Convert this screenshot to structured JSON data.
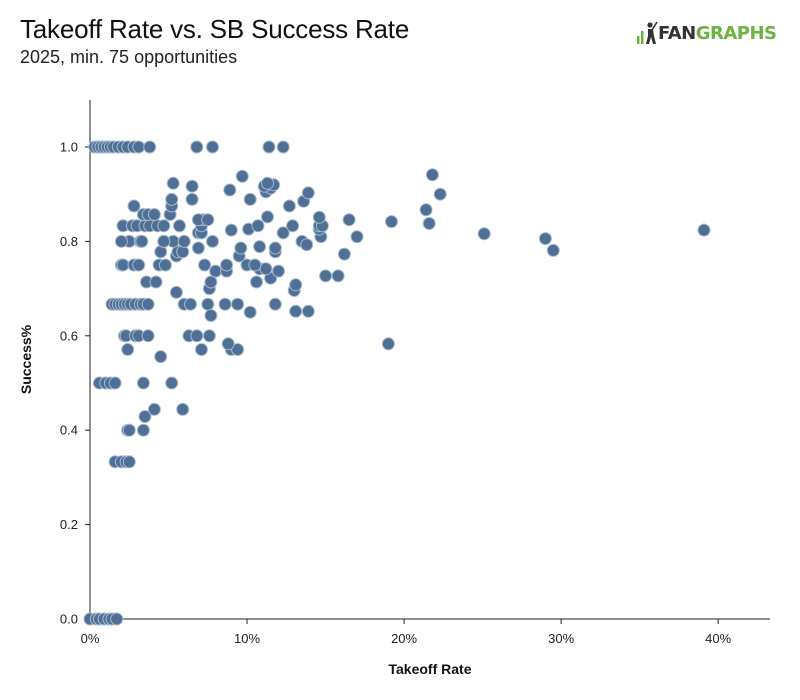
{
  "brand": {
    "logo_text_a": "FAN",
    "logo_text_b": "GRAPHS",
    "logo_icon": "fangraphs-batter-icon",
    "color_dark": "#333333",
    "color_green": "#6cb33f"
  },
  "chart_data": {
    "type": "scatter",
    "title": "Takeoff Rate vs. SB Success Rate",
    "subtitle": "2025, min. 75 opportunities",
    "xlabel": "Takeoff Rate",
    "ylabel": "Success%",
    "xlim": [
      0,
      0.433
    ],
    "ylim": [
      0,
      1.1
    ],
    "x_ticks": [
      0,
      0.1,
      0.2,
      0.3,
      0.4
    ],
    "x_tick_labels": [
      "0%",
      "10%",
      "20%",
      "30%",
      "40%"
    ],
    "y_ticks": [
      0,
      0.2,
      0.4,
      0.6,
      0.8,
      1.0
    ],
    "y_tick_labels": [
      "0.0",
      "0.2",
      "0.4",
      "0.6",
      "0.8",
      "1.0"
    ],
    "grid": false,
    "marker_color": "#4f6f95",
    "marker_edge": "#a8bbd0",
    "points": [
      [
        0.0,
        0.0
      ],
      [
        0.004,
        0.0
      ],
      [
        0.006,
        0.0
      ],
      [
        0.009,
        0.0
      ],
      [
        0.012,
        0.0
      ],
      [
        0.014,
        0.0
      ],
      [
        0.017,
        0.0
      ],
      [
        0.003,
        1.0
      ],
      [
        0.005,
        1.0
      ],
      [
        0.007,
        1.0
      ],
      [
        0.009,
        1.0
      ],
      [
        0.011,
        1.0
      ],
      [
        0.013,
        1.0
      ],
      [
        0.015,
        1.0
      ],
      [
        0.018,
        1.0
      ],
      [
        0.021,
        1.0
      ],
      [
        0.024,
        1.0
      ],
      [
        0.028,
        1.0
      ],
      [
        0.031,
        1.0
      ],
      [
        0.038,
        1.0
      ],
      [
        0.068,
        1.0
      ],
      [
        0.078,
        1.0
      ],
      [
        0.114,
        1.0
      ],
      [
        0.123,
        1.0
      ],
      [
        0.006,
        0.5
      ],
      [
        0.01,
        0.5
      ],
      [
        0.013,
        0.5
      ],
      [
        0.016,
        0.5
      ],
      [
        0.034,
        0.5
      ],
      [
        0.052,
        0.5
      ],
      [
        0.016,
        0.333
      ],
      [
        0.02,
        0.333
      ],
      [
        0.023,
        0.333
      ],
      [
        0.025,
        0.333
      ],
      [
        0.024,
        0.4
      ],
      [
        0.025,
        0.4
      ],
      [
        0.034,
        0.4
      ],
      [
        0.035,
        0.429
      ],
      [
        0.041,
        0.444
      ],
      [
        0.059,
        0.444
      ],
      [
        0.045,
        0.556
      ],
      [
        0.024,
        0.571
      ],
      [
        0.071,
        0.571
      ],
      [
        0.09,
        0.571
      ],
      [
        0.094,
        0.571
      ],
      [
        0.088,
        0.583
      ],
      [
        0.19,
        0.583
      ],
      [
        0.022,
        0.6
      ],
      [
        0.023,
        0.6
      ],
      [
        0.029,
        0.6
      ],
      [
        0.031,
        0.6
      ],
      [
        0.037,
        0.6
      ],
      [
        0.063,
        0.6
      ],
      [
        0.068,
        0.6
      ],
      [
        0.076,
        0.6
      ],
      [
        0.014,
        0.667
      ],
      [
        0.016,
        0.667
      ],
      [
        0.018,
        0.667
      ],
      [
        0.02,
        0.667
      ],
      [
        0.022,
        0.667
      ],
      [
        0.024,
        0.667
      ],
      [
        0.026,
        0.667
      ],
      [
        0.029,
        0.667
      ],
      [
        0.032,
        0.667
      ],
      [
        0.034,
        0.667
      ],
      [
        0.037,
        0.667
      ],
      [
        0.06,
        0.667
      ],
      [
        0.064,
        0.667
      ],
      [
        0.075,
        0.667
      ],
      [
        0.086,
        0.667
      ],
      [
        0.094,
        0.667
      ],
      [
        0.118,
        0.667
      ],
      [
        0.102,
        0.65
      ],
      [
        0.131,
        0.652
      ],
      [
        0.139,
        0.652
      ],
      [
        0.077,
        0.643
      ],
      [
        0.055,
        0.692
      ],
      [
        0.13,
        0.696
      ],
      [
        0.076,
        0.7
      ],
      [
        0.131,
        0.708
      ],
      [
        0.077,
        0.714
      ],
      [
        0.036,
        0.714
      ],
      [
        0.042,
        0.714
      ],
      [
        0.106,
        0.714
      ],
      [
        0.115,
        0.722
      ],
      [
        0.15,
        0.727
      ],
      [
        0.158,
        0.727
      ],
      [
        0.08,
        0.737
      ],
      [
        0.087,
        0.737
      ],
      [
        0.12,
        0.737
      ],
      [
        0.108,
        0.742
      ],
      [
        0.112,
        0.742
      ],
      [
        0.02,
        0.75
      ],
      [
        0.021,
        0.75
      ],
      [
        0.028,
        0.75
      ],
      [
        0.031,
        0.75
      ],
      [
        0.044,
        0.75
      ],
      [
        0.048,
        0.75
      ],
      [
        0.073,
        0.75
      ],
      [
        0.087,
        0.75
      ],
      [
        0.1,
        0.75
      ],
      [
        0.105,
        0.75
      ],
      [
        0.095,
        0.769
      ],
      [
        0.055,
        0.769
      ],
      [
        0.162,
        0.773
      ],
      [
        0.056,
        0.778
      ],
      [
        0.045,
        0.778
      ],
      [
        0.059,
        0.778
      ],
      [
        0.118,
        0.778
      ],
      [
        0.118,
        0.786
      ],
      [
        0.096,
        0.786
      ],
      [
        0.069,
        0.786
      ],
      [
        0.108,
        0.789
      ],
      [
        0.025,
        0.8
      ],
      [
        0.032,
        0.8
      ],
      [
        0.033,
        0.8
      ],
      [
        0.02,
        0.8
      ],
      [
        0.047,
        0.8
      ],
      [
        0.053,
        0.8
      ],
      [
        0.06,
        0.8
      ],
      [
        0.078,
        0.8
      ],
      [
        0.047,
        0.8
      ],
      [
        0.135,
        0.8
      ],
      [
        0.138,
        0.793
      ],
      [
        0.147,
        0.81
      ],
      [
        0.17,
        0.81
      ],
      [
        0.29,
        0.806
      ],
      [
        0.295,
        0.781
      ],
      [
        0.251,
        0.816
      ],
      [
        0.123,
        0.818
      ],
      [
        0.069,
        0.818
      ],
      [
        0.071,
        0.818
      ],
      [
        0.391,
        0.824
      ],
      [
        0.09,
        0.824
      ],
      [
        0.101,
        0.826
      ],
      [
        0.146,
        0.826
      ],
      [
        0.021,
        0.833
      ],
      [
        0.027,
        0.833
      ],
      [
        0.03,
        0.833
      ],
      [
        0.035,
        0.833
      ],
      [
        0.038,
        0.833
      ],
      [
        0.043,
        0.833
      ],
      [
        0.047,
        0.833
      ],
      [
        0.057,
        0.833
      ],
      [
        0.071,
        0.833
      ],
      [
        0.107,
        0.833
      ],
      [
        0.129,
        0.833
      ],
      [
        0.146,
        0.833
      ],
      [
        0.148,
        0.833
      ],
      [
        0.216,
        0.838
      ],
      [
        0.192,
        0.842
      ],
      [
        0.165,
        0.846
      ],
      [
        0.072,
        0.846
      ],
      [
        0.069,
        0.846
      ],
      [
        0.075,
        0.846
      ],
      [
        0.113,
        0.852
      ],
      [
        0.146,
        0.851
      ],
      [
        0.034,
        0.857
      ],
      [
        0.037,
        0.857
      ],
      [
        0.041,
        0.857
      ],
      [
        0.051,
        0.857
      ],
      [
        0.214,
        0.867
      ],
      [
        0.052,
        0.875
      ],
      [
        0.028,
        0.875
      ],
      [
        0.127,
        0.875
      ],
      [
        0.136,
        0.885
      ],
      [
        0.065,
        0.889
      ],
      [
        0.052,
        0.889
      ],
      [
        0.102,
        0.889
      ],
      [
        0.223,
        0.9
      ],
      [
        0.139,
        0.903
      ],
      [
        0.112,
        0.905
      ],
      [
        0.089,
        0.909
      ],
      [
        0.115,
        0.913
      ],
      [
        0.065,
        0.917
      ],
      [
        0.111,
        0.917
      ],
      [
        0.117,
        0.92
      ],
      [
        0.113,
        0.923
      ],
      [
        0.053,
        0.923
      ],
      [
        0.097,
        0.938
      ],
      [
        0.218,
        0.941
      ]
    ]
  }
}
